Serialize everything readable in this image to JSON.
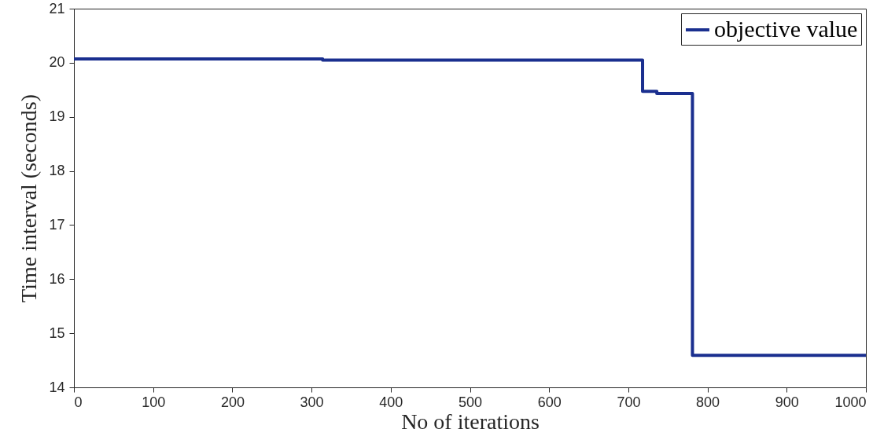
{
  "chart_data": {
    "type": "step",
    "xlabel": "No of iterations",
    "ylabel": "Time interval (seconds)",
    "x": [
      0,
      314,
      718,
      736,
      781,
      1000
    ],
    "series": [
      {
        "name": "objective value",
        "color": "#1a2f8f",
        "values": [
          20.07,
          20.05,
          19.47,
          19.43,
          14.59,
          14.59
        ]
      }
    ],
    "xlim": [
      0,
      1000
    ],
    "xticks": [
      0,
      100,
      200,
      300,
      400,
      500,
      600,
      700,
      800,
      900,
      1000
    ],
    "ylim": [
      14,
      21
    ],
    "yticks": [
      14,
      15,
      16,
      17,
      18,
      19,
      20,
      21
    ],
    "grid": false,
    "legend": "top right",
    "line_style": "solid",
    "marker": "none"
  }
}
